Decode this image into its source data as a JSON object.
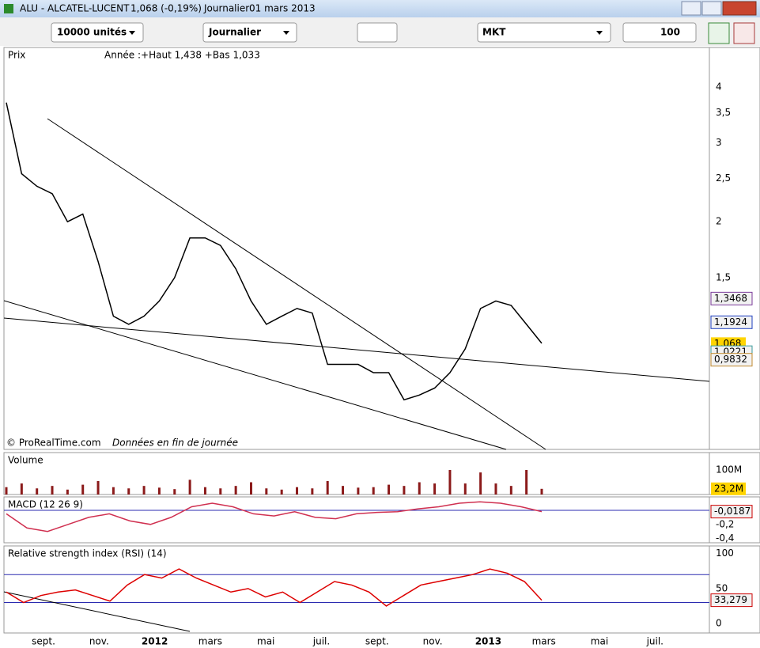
{
  "title_bar": {
    "symbol": "ALU - ALCATEL-LUCENT",
    "quote": "1,068 (-0,19%)",
    "period": "Journalier",
    "date": "01 mars 2013"
  },
  "toolbar": {
    "quantity": "10000 unités",
    "timeframe": "Journalier",
    "order_type": "MKT",
    "amount": "100"
  },
  "chart_data": [
    {
      "type": "line",
      "title": "Prix",
      "subtitle": "Année :+Haut 1,438 +Bas 1,033",
      "annotation": "© ProRealTime.com",
      "annotation_note": "Données en fin de journée",
      "log_scale": true,
      "ylim": [
        0.62,
        4.9
      ],
      "yticks": [
        {
          "value": 4,
          "label": "4"
        },
        {
          "value": 3.5,
          "label": "3,5"
        },
        {
          "value": 3,
          "label": "3"
        },
        {
          "value": 2.5,
          "label": "2,5"
        },
        {
          "value": 2,
          "label": "2"
        },
        {
          "value": 1.5,
          "label": "1,5"
        }
      ],
      "series": [
        {
          "color": "#000000",
          "values": [
            3.69,
            2.56,
            2.4,
            2.31,
            2.0,
            2.08,
            1.63,
            1.23,
            1.18,
            1.23,
            1.33,
            1.5,
            1.84,
            1.84,
            1.77,
            1.57,
            1.33,
            1.18,
            1.23,
            1.28,
            1.25,
            0.96,
            0.96,
            0.96,
            0.92,
            0.92,
            0.8,
            0.82,
            0.85,
            0.92,
            1.04,
            1.28,
            1.33,
            1.3,
            1.18,
            1.07
          ]
        }
      ],
      "last_values": [
        {
          "value": 1.3468,
          "label": "1,3468",
          "color": "#7a3a9a"
        },
        {
          "value": 1.1924,
          "label": "1,1924",
          "color": "#1f3fbf"
        },
        {
          "value": 1.068,
          "label": "1,068",
          "color": "#000000"
        },
        {
          "value": 1.0221,
          "label": "1,0221",
          "color": "#3a9a9a"
        },
        {
          "value": 0.9832,
          "label": "0,9832",
          "color": "#c08a30"
        }
      ]
    },
    {
      "type": "bar",
      "title": "Volume",
      "ylim": [
        0,
        171000000
      ],
      "yticks": [
        {
          "value": 100000000,
          "label": "100M"
        }
      ],
      "series": [
        {
          "color": "#8b1a1a",
          "values": [
            30000000,
            45000000,
            25000000,
            35000000,
            20000000,
            40000000,
            55000000,
            30000000,
            25000000,
            35000000,
            28000000,
            22000000,
            60000000,
            30000000,
            25000000,
            35000000,
            50000000,
            25000000,
            20000000,
            30000000,
            25000000,
            55000000,
            35000000,
            28000000,
            30000000,
            40000000,
            35000000,
            50000000,
            45000000,
            100000000,
            45000000,
            90000000,
            45000000,
            35000000,
            100000000,
            23200000
          ]
        }
      ],
      "last_values": [
        {
          "value": 23200000,
          "label": "23,2M",
          "color": "#000000"
        }
      ]
    },
    {
      "type": "line",
      "title": "MACD (12 26 9)",
      "ylim": [
        -0.46,
        0.19
      ],
      "zero_line": 0,
      "yticks": [
        {
          "value": -0.2,
          "label": "-0,2"
        },
        {
          "value": -0.4,
          "label": "-0,4"
        }
      ],
      "series": [
        {
          "color": "#d03050",
          "values": [
            -0.05,
            -0.25,
            -0.3,
            -0.2,
            -0.1,
            -0.05,
            -0.15,
            -0.2,
            -0.1,
            0.05,
            0.1,
            0.05,
            -0.05,
            -0.08,
            -0.02,
            -0.1,
            -0.12,
            -0.05,
            -0.03,
            -0.02,
            0.02,
            0.05,
            0.1,
            0.12,
            0.1,
            0.05,
            -0.0187
          ]
        }
      ],
      "last_values": [
        {
          "value": -0.0187,
          "label": "-0,0187",
          "color": "#cc0000"
        }
      ]
    },
    {
      "type": "line",
      "title": "Relative strength index (RSI) (14)",
      "ylim": [
        -13.6,
        111
      ],
      "yticks": [
        0,
        50,
        100
      ],
      "levels": [
        30,
        70
      ],
      "xticks": [
        "sept.",
        "nov.",
        "2012",
        "mars",
        "mai",
        "juil.",
        "sept.",
        "nov.",
        "2013",
        "mars",
        "mai",
        "juil."
      ],
      "series": [
        {
          "color": "#dd0000",
          "values": [
            45,
            30,
            40,
            45,
            48,
            40,
            32,
            55,
            70,
            65,
            78,
            65,
            55,
            45,
            50,
            38,
            45,
            30,
            45,
            60,
            55,
            45,
            25,
            40,
            55,
            60,
            65,
            70,
            78,
            72,
            60,
            33.279
          ]
        }
      ],
      "last_values": [
        {
          "value": 33.279,
          "label": "33,279",
          "color": "#cc0000"
        }
      ]
    }
  ]
}
